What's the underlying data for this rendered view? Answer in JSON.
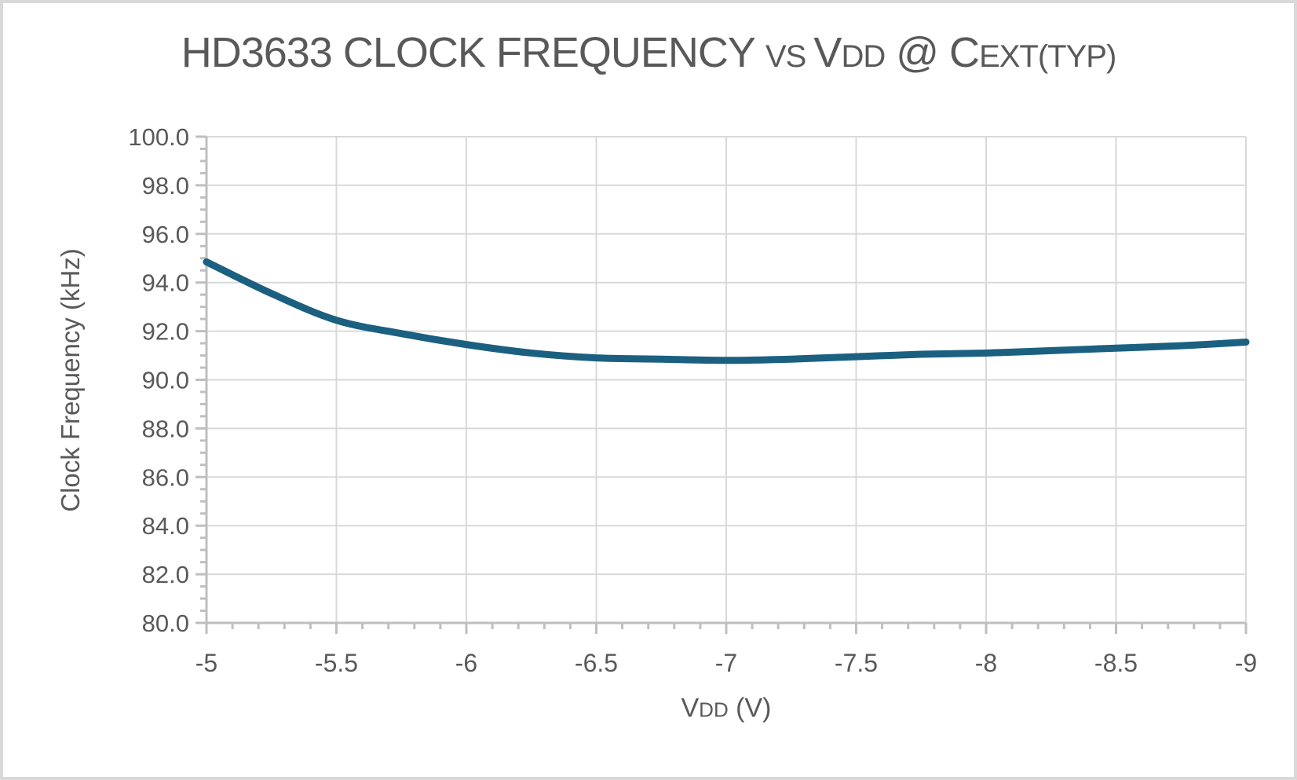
{
  "title": {
    "full": "HD3633 CLOCK FREQUENCY vs VDD @ CEXT(TYP)",
    "parts": [
      {
        "text": "HD3633 CLOCK FREQUENCY ",
        "size": "large"
      },
      {
        "text": "VS ",
        "size": "small"
      },
      {
        "text": "V",
        "size": "large"
      },
      {
        "text": "DD",
        "size": "small"
      },
      {
        "text": " @ C",
        "size": "large"
      },
      {
        "text": "EXT(TYP)",
        "size": "small"
      }
    ]
  },
  "xlabel_parts": [
    {
      "text": "V",
      "size": "large"
    },
    {
      "text": "DD",
      "size": "small"
    },
    {
      "text": " (V)",
      "size": "large"
    }
  ],
  "chart_data": {
    "type": "line",
    "title": "HD3633 CLOCK FREQUENCY vs VDD @ CEXT(TYP)",
    "xlabel": "VDD (V)",
    "ylabel": "Clock Frequency (kHz)",
    "series": [
      {
        "name": "Clock Frequency",
        "x": [
          -5.0,
          -5.25,
          -5.5,
          -5.75,
          -6.0,
          -6.25,
          -6.5,
          -6.75,
          -7.0,
          -7.25,
          -7.5,
          -7.75,
          -8.0,
          -8.25,
          -8.5,
          -8.75,
          -9.0
        ],
        "y": [
          94.85,
          93.55,
          92.45,
          91.9,
          91.45,
          91.1,
          90.9,
          90.85,
          90.8,
          90.85,
          90.95,
          91.05,
          91.1,
          91.2,
          91.3,
          91.4,
          91.55
        ]
      }
    ],
    "xlim": [
      -5,
      -9
    ],
    "ylim": [
      80,
      100
    ],
    "x_major_ticks": [
      -5,
      -5.5,
      -6,
      -6.5,
      -7,
      -7.5,
      -8,
      -8.5,
      -9
    ],
    "x_tick_labels": [
      "-5",
      "-5.5",
      "-6",
      "-6.5",
      "-7",
      "-7.5",
      "-8",
      "-8.5",
      "-9"
    ],
    "x_minor_step": 0.1,
    "y_major_ticks": [
      100,
      98,
      96,
      94,
      92,
      90,
      88,
      86,
      84,
      82,
      80
    ],
    "y_tick_labels": [
      "100.0",
      "98.0",
      "96.0",
      "94.0",
      "92.0",
      "90.0",
      "88.0",
      "86.0",
      "84.0",
      "82.0",
      "80.0"
    ],
    "y_minor_step": 0.5,
    "grid": true,
    "legend": "none",
    "smooth": true,
    "colors": {
      "line": "#1B6080",
      "gridline": "#D9D9D9",
      "axis": "#BFBFBF",
      "text": "#595959",
      "background": "#FFFFFF",
      "border": "#D9D9D9"
    }
  }
}
